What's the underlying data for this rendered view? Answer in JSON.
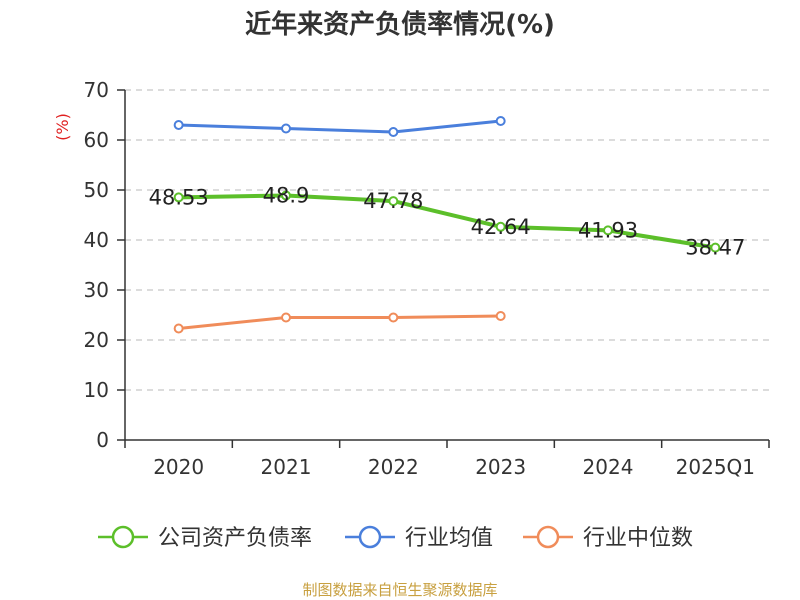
{
  "chart_data": {
    "type": "line",
    "title": "近年来资产负债率情况(%)",
    "ylabel": "(%)",
    "categories": [
      "2020",
      "2021",
      "2022",
      "2023",
      "2024",
      "2025Q1"
    ],
    "ylim": [
      0,
      70
    ],
    "yticks": [
      0,
      10,
      20,
      30,
      40,
      50,
      60,
      70
    ],
    "grid": true,
    "legend_position": "bottom",
    "series": [
      {
        "name": "公司资产负债率",
        "color": "#5cbf2a",
        "values": [
          48.53,
          48.9,
          47.78,
          42.64,
          41.93,
          38.47
        ],
        "labels": [
          "48.53",
          "48.9",
          "47.78",
          "42.64",
          "41.93",
          "38.47"
        ]
      },
      {
        "name": "行业均值",
        "color": "#4a7fdc",
        "values": [
          63.0,
          62.3,
          61.6,
          63.8,
          null,
          null
        ]
      },
      {
        "name": "行业中位数",
        "color": "#f08c5a",
        "values": [
          22.3,
          24.5,
          24.5,
          24.8,
          null,
          null
        ]
      }
    ]
  },
  "source": "制图数据来自恒生聚源数据库"
}
